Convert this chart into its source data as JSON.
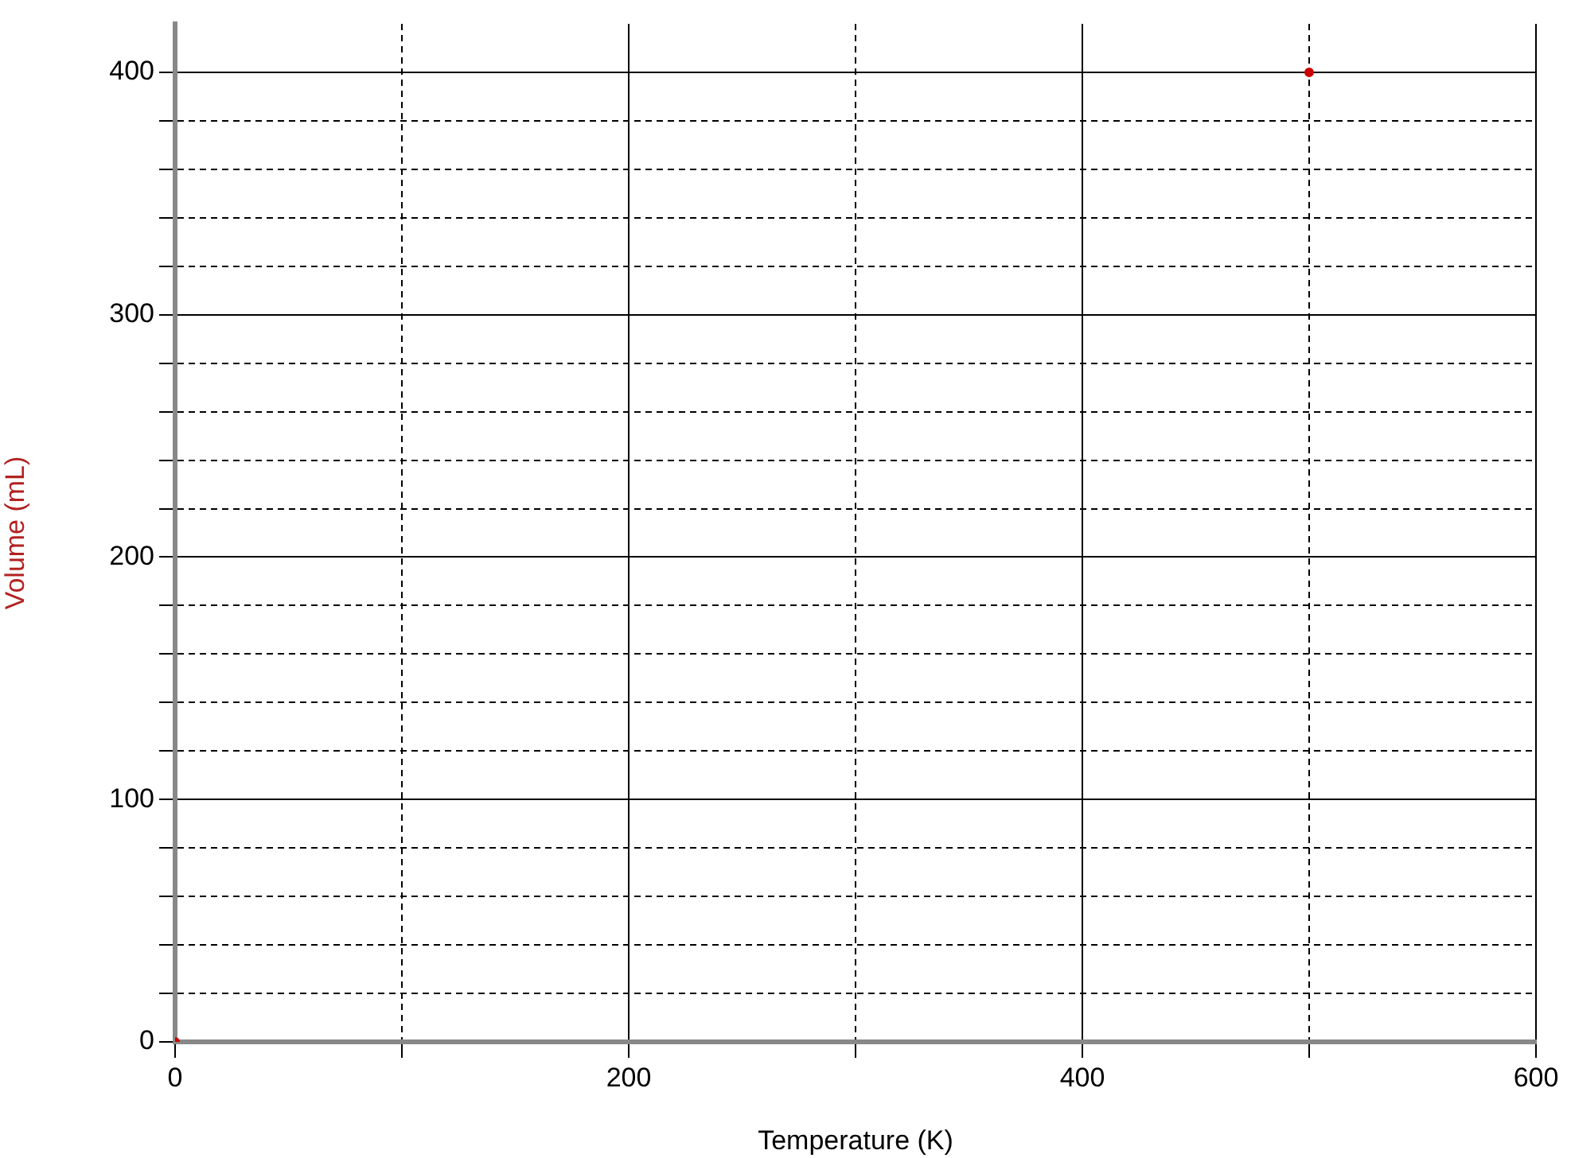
{
  "chart_data": {
    "type": "scatter",
    "xlabel": "Temperature (K)",
    "ylabel": "Volume (mL)",
    "series": [
      {
        "color": "#cc0000",
        "x": [
          0,
          500
        ],
        "values": [
          0,
          400
        ]
      }
    ],
    "xlim": [
      0,
      600
    ],
    "xticks": [
      0,
      {
        "value": 100,
        "label": null
      },
      200,
      {
        "value": 300,
        "label": null
      },
      400,
      {
        "value": 500,
        "label": null
      },
      600
    ],
    "ylim": [
      0,
      420
    ],
    "yticks": [
      0,
      {
        "value": 20,
        "label": null
      },
      {
        "value": 40,
        "label": null
      },
      {
        "value": 60,
        "label": null
      },
      {
        "value": 80,
        "label": null
      },
      100,
      {
        "value": 120,
        "label": null
      },
      {
        "value": 140,
        "label": null
      },
      {
        "value": 160,
        "label": null
      },
      {
        "value": 180,
        "label": null
      },
      200,
      {
        "value": 220,
        "label": null
      },
      {
        "value": 240,
        "label": null
      },
      {
        "value": 260,
        "label": null
      },
      {
        "value": 280,
        "label": null
      },
      300,
      {
        "value": 320,
        "label": null
      },
      {
        "value": 340,
        "label": null
      },
      {
        "value": 360,
        "label": null
      },
      {
        "value": 380,
        "label": null
      },
      400
    ],
    "grid": true,
    "marker": "circle",
    "legend": false
  }
}
